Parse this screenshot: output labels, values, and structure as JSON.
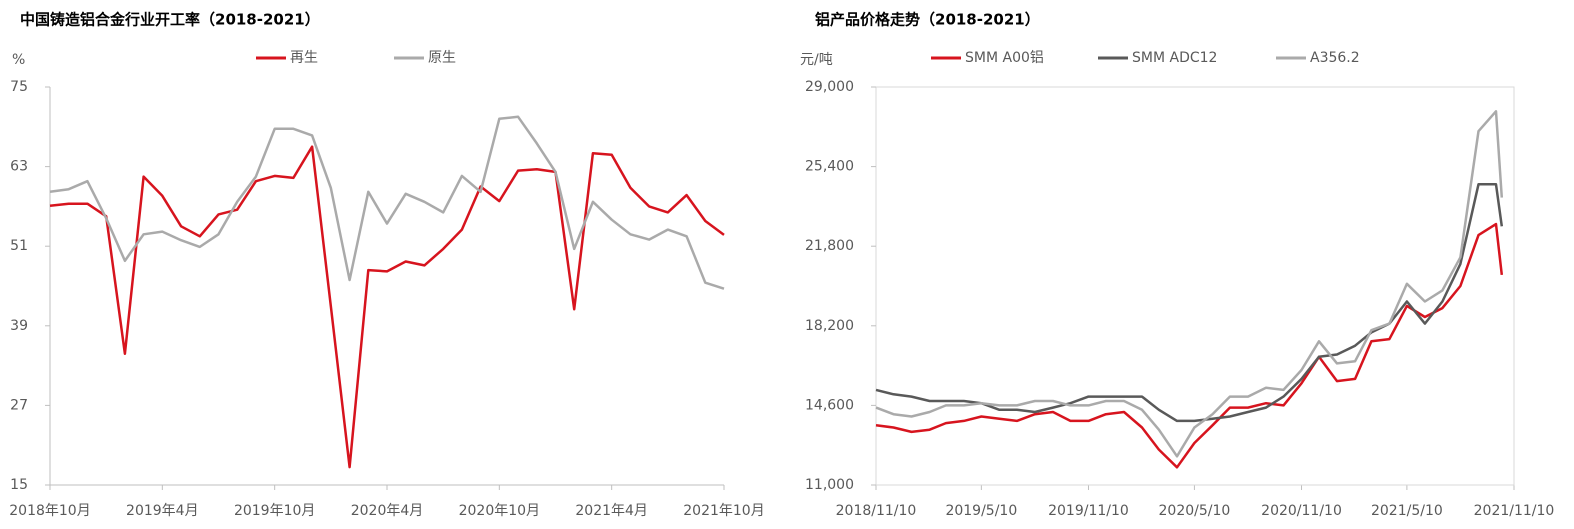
{
  "chart_data": [
    {
      "type": "line",
      "title": "中国铸造铝合金行业开工率（2018-2021）",
      "y_label": "%",
      "categories": [
        "2018年10月",
        null,
        null,
        null,
        null,
        null,
        "2019年4月",
        null,
        null,
        null,
        null,
        null,
        "2019年10月",
        null,
        null,
        null,
        null,
        null,
        "2020年4月",
        null,
        null,
        null,
        null,
        null,
        "2020年10月",
        null,
        null,
        null,
        null,
        null,
        "2021年4月",
        null,
        null,
        null,
        null,
        null,
        "2021年10月"
      ],
      "series": [
        {
          "name": "再生",
          "color": "#d7141e",
          "values": [
            57.1,
            57.4,
            57.4,
            55.5,
            34.8,
            61.5,
            58.6,
            54,
            52.5,
            55.8,
            56.5,
            60.8,
            61.6,
            61.3,
            66,
            42,
            17.7,
            47.4,
            47.2,
            48.7,
            48.1,
            50.6,
            53.5,
            60,
            57.8,
            62.4,
            62.6,
            62.2,
            41.5,
            65,
            64.8,
            59.8,
            57,
            56.1,
            58.7,
            54.8,
            52.7
          ]
        },
        {
          "name": "原生",
          "color": "#aaaaaa",
          "values": [
            59.2,
            59.6,
            60.8,
            55.2,
            48.8,
            52.8,
            53.2,
            51.9,
            50.9,
            52.8,
            57.7,
            61.5,
            68.7,
            68.7,
            67.7,
            59.8,
            45.9,
            59.2,
            54.4,
            58.9,
            57.7,
            56.1,
            61.6,
            59.2,
            70.2,
            70.5,
            66.5,
            62.2,
            50.6,
            57.7,
            55,
            52.8,
            52,
            53.5,
            52.5,
            45.5,
            44.6
          ]
        }
      ],
      "ylim": [
        15,
        75
      ],
      "yticks": [
        15,
        27,
        39,
        51,
        63,
        75
      ],
      "legend": "top",
      "grid": false
    },
    {
      "type": "line",
      "title": "铝产品价格走势（2018-2021）",
      "y_label": "元/吨",
      "x": [
        "2018/11/10",
        "2018/12/10",
        "2019/1/10",
        "2019/2/10",
        "2019/3/10",
        "2019/4/10",
        "2019/5/10",
        "2019/6/10",
        "2019/7/10",
        "2019/8/10",
        "2019/9/10",
        "2019/10/10",
        "2019/11/10",
        "2019/12/10",
        "2020/1/10",
        "2020/2/10",
        "2020/3/10",
        "2020/4/10",
        "2020/5/10",
        "2020/6/10",
        "2020/7/10",
        "2020/8/10",
        "2020/9/10",
        "2020/10/10",
        "2020/11/10",
        "2020/12/10",
        "2021/1/10",
        "2021/2/10",
        "2021/3/10",
        "2021/4/10",
        "2021/5/10",
        "2021/6/10",
        "2021/7/10",
        "2021/8/10",
        "2021/9/10",
        "2021/10/10",
        "2021/10/20"
      ],
      "series": [
        {
          "name": "SMM A00铝",
          "color": "#d7141e",
          "values": [
            13700,
            13600,
            13400,
            13500,
            13800,
            13900,
            14100,
            14000,
            13900,
            14200,
            14300,
            13900,
            13900,
            14200,
            14300,
            13600,
            12600,
            11800,
            12900,
            13700,
            14500,
            14500,
            14700,
            14600,
            15600,
            16800,
            15700,
            15800,
            17500,
            17600,
            19100,
            18600,
            19000,
            20000,
            22300,
            22800,
            20500
          ]
        },
        {
          "name": "SMM ADC12",
          "color": "#595959",
          "values": [
            15300,
            15100,
            15000,
            14800,
            14800,
            14800,
            14700,
            14400,
            14400,
            14300,
            14500,
            14700,
            15000,
            15000,
            15000,
            15000,
            14400,
            13900,
            13900,
            14000,
            14100,
            14300,
            14500,
            15000,
            15800,
            16800,
            16900,
            17300,
            17900,
            18300,
            19300,
            18300,
            19300,
            21000,
            24600,
            24600,
            22700
          ]
        },
        {
          "name": "A356.2",
          "color": "#aaaaaa",
          "values": [
            14500,
            14200,
            14100,
            14300,
            14600,
            14600,
            14700,
            14600,
            14600,
            14800,
            14800,
            14600,
            14600,
            14800,
            14800,
            14400,
            13500,
            12300,
            13600,
            14200,
            15000,
            15000,
            15400,
            15300,
            16200,
            17500,
            16500,
            16600,
            18000,
            18300,
            20100,
            19300,
            19800,
            21300,
            27000,
            27900,
            24000
          ]
        }
      ],
      "xlim": [
        "2018/11/10",
        "2021/11/10"
      ],
      "xticks": [
        "2018/11/10",
        "2019/5/10",
        "2019/11/10",
        "2020/5/10",
        "2020/11/10",
        "2021/5/10",
        "2021/11/10"
      ],
      "ylim": [
        11000,
        29000
      ],
      "yticks": [
        {
          "value": 11000,
          "label": "11,000"
        },
        {
          "value": 14600,
          "label": "14,600"
        },
        {
          "value": 18200,
          "label": "18,200"
        },
        {
          "value": 21800,
          "label": "21,800"
        },
        {
          "value": 25400,
          "label": "25,400"
        },
        {
          "value": 29000,
          "label": "29,000"
        }
      ],
      "legend": "top",
      "grid": false
    }
  ]
}
